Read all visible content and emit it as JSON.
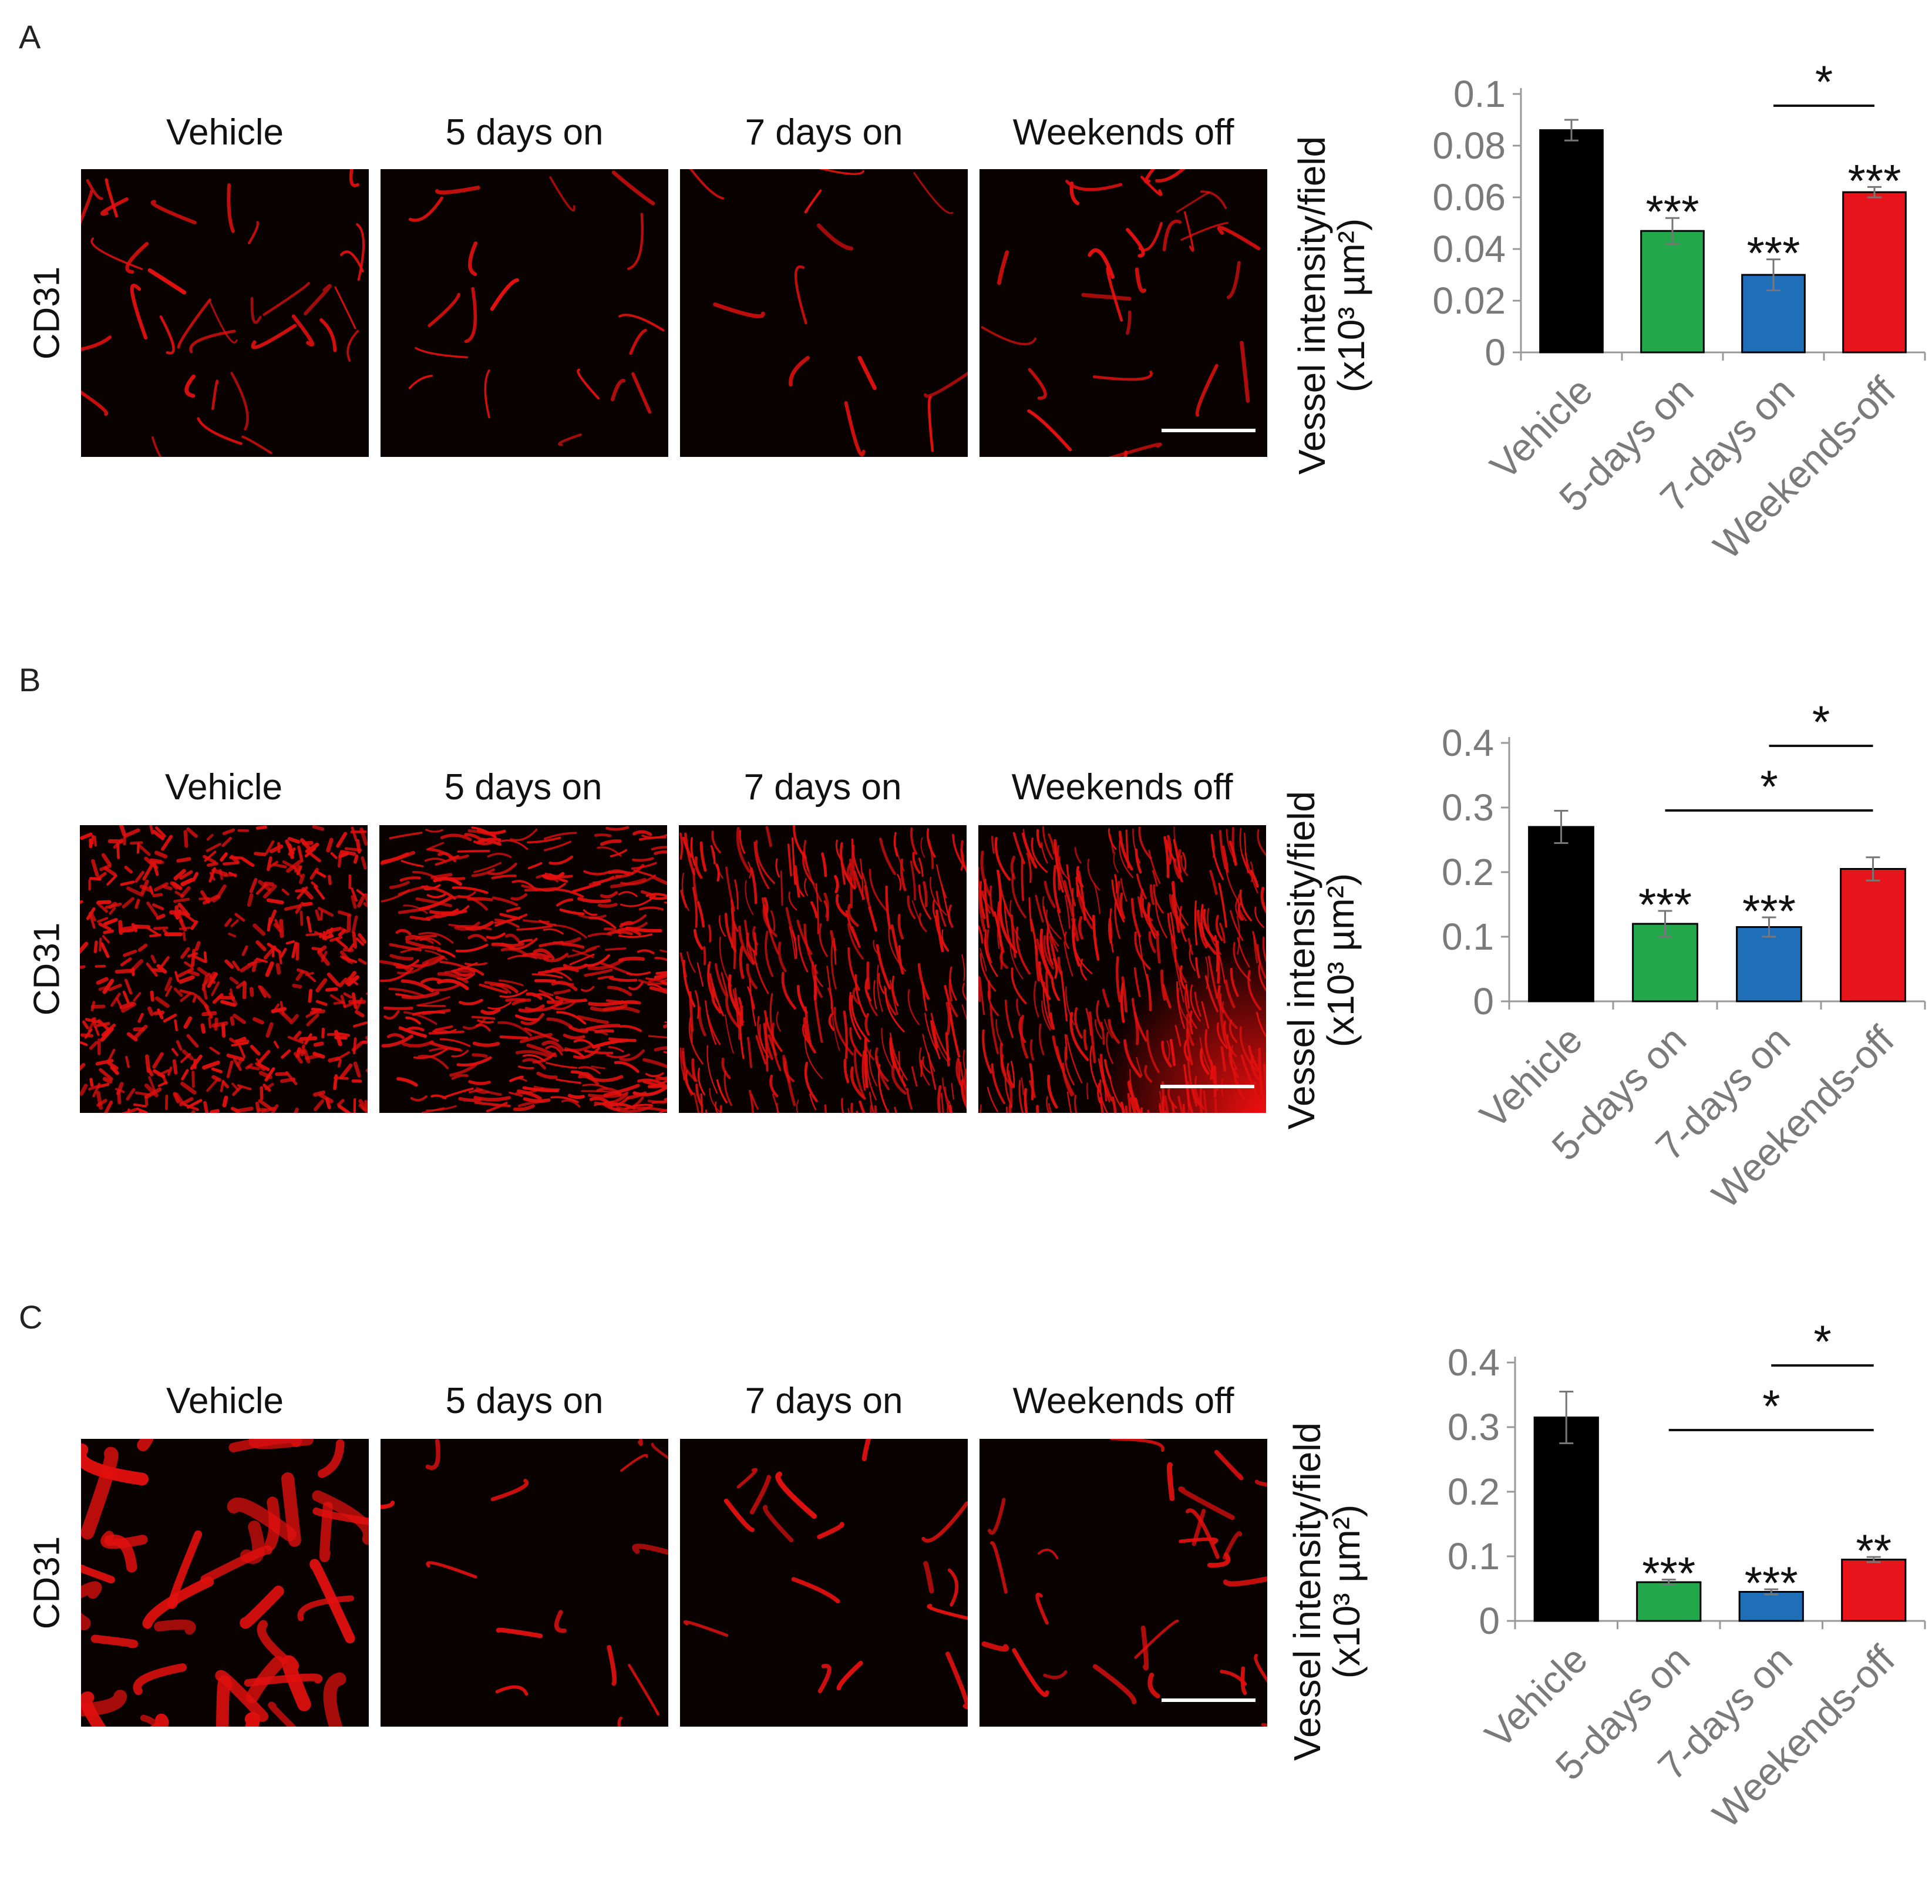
{
  "panels": [
    {
      "letter": "A",
      "stain": "CD31",
      "image_labels": [
        "Vehicle",
        "5 days on",
        "7 days on",
        "Weekends off"
      ]
    },
    {
      "letter": "B",
      "stain": "CD31",
      "image_labels": [
        "Vehicle",
        "5 days on",
        "7 days on",
        "Weekends off"
      ]
    },
    {
      "letter": "C",
      "stain": "CD31",
      "image_labels": [
        "Vehicle",
        "5 days on",
        "7 days on",
        "Weekends off"
      ]
    }
  ],
  "colors": {
    "Vehicle": "#000000",
    "5-days on": "#22a84a",
    "7-days on": "#1f6fb8",
    "Weekends-off": "#e8141c",
    "micro_vessel": "#e0100e"
  },
  "chart_data": [
    {
      "type": "bar",
      "ylabel_line1": "Vessel intensity/field",
      "ylabel_line2": "(x10³ µm²)",
      "categories": [
        "Vehicle",
        "5-days on",
        "7-days on",
        "Weekends-off"
      ],
      "values": [
        0.086,
        0.047,
        0.03,
        0.062
      ],
      "errors": [
        0.004,
        0.005,
        0.006,
        0.002
      ],
      "significance": [
        "",
        "***",
        "***",
        "***"
      ],
      "ylim": [
        0,
        0.1
      ],
      "yticks": [
        "0",
        "0.02",
        "0.04",
        "0.06",
        "0.08",
        "0.1"
      ],
      "ytick_values": [
        0,
        0.02,
        0.04,
        0.06,
        0.08,
        0.1
      ],
      "brackets": [
        {
          "from": 2,
          "to": 3,
          "label": "*"
        }
      ]
    },
    {
      "type": "bar",
      "ylabel_line1": "Vessel intensity/field",
      "ylabel_line2": "(x10³ µm²)",
      "categories": [
        "Vehicle",
        "5-days on",
        "7-days on",
        "Weekends-off"
      ],
      "values": [
        0.27,
        0.12,
        0.115,
        0.205
      ],
      "errors": [
        0.025,
        0.02,
        0.015,
        0.018
      ],
      "significance": [
        "",
        "***",
        "***",
        ""
      ],
      "ylim": [
        0,
        0.4
      ],
      "yticks": [
        "0",
        "0.1",
        "0.2",
        "0.3",
        "0.4"
      ],
      "ytick_values": [
        0,
        0.1,
        0.2,
        0.3,
        0.4
      ],
      "brackets": [
        {
          "from": 2,
          "to": 3,
          "label": "*"
        },
        {
          "from": 1,
          "to": 3,
          "label": "*"
        }
      ]
    },
    {
      "type": "bar",
      "ylabel_line1": "Vessel intensity/field",
      "ylabel_line2": "(x10³ µm²)",
      "categories": [
        "Vehicle",
        "5-days on",
        "7-days on",
        "Weekends-off"
      ],
      "values": [
        0.315,
        0.06,
        0.045,
        0.095
      ],
      "errors": [
        0.04,
        0.004,
        0.004,
        0.004
      ],
      "significance": [
        "",
        "***",
        "***",
        "**"
      ],
      "ylim": [
        0,
        0.4
      ],
      "yticks": [
        "0",
        "0.1",
        "0.2",
        "0.3",
        "0.4"
      ],
      "ytick_values": [
        0,
        0.1,
        0.2,
        0.3,
        0.4
      ],
      "brackets": [
        {
          "from": 2,
          "to": 3,
          "label": "*"
        },
        {
          "from": 1,
          "to": 3,
          "label": "*"
        }
      ]
    }
  ]
}
